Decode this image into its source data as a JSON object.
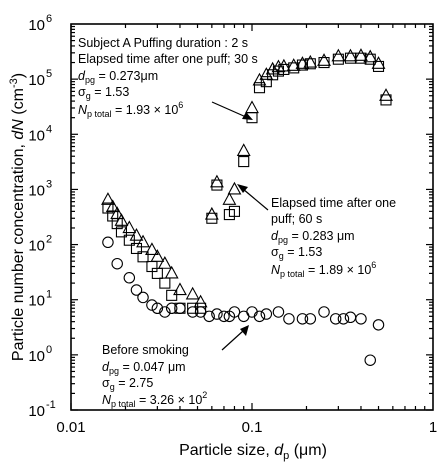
{
  "chart_data": {
    "type": "scatter",
    "xscale": "log",
    "yscale": "log",
    "xlim": [
      0.01,
      1
    ],
    "ylim": [
      0.1,
      1000000
    ],
    "x_ticks": [
      {
        "value": 0.01,
        "label": "0.01"
      },
      {
        "value": 0.1,
        "label": "0.1"
      },
      {
        "value": 1,
        "label": "1"
      }
    ],
    "y_ticks": [
      {
        "value": 0.1,
        "base": "10",
        "exp": "-1"
      },
      {
        "value": 1,
        "base": "10",
        "exp": "0"
      },
      {
        "value": 10,
        "base": "10",
        "exp": "1"
      },
      {
        "value": 100,
        "base": "10",
        "exp": "2"
      },
      {
        "value": 1000,
        "base": "10",
        "exp": "3"
      },
      {
        "value": 10000,
        "base": "10",
        "exp": "4"
      },
      {
        "value": 100000,
        "base": "10",
        "exp": "5"
      },
      {
        "value": 1000000,
        "base": "10",
        "exp": "6"
      }
    ],
    "xlabel": {
      "main": "Particle size, ",
      "var": "d",
      "sub": "p",
      "unit": " (μm)"
    },
    "ylabel": {
      "main": "Particle number concentration, ",
      "var": "dN",
      "unit_pre": " (cm",
      "unit_sup": "-3",
      "unit_post": ")"
    },
    "series": [
      {
        "marker": "triangle",
        "points": [
          [
            0.016,
            650
          ],
          [
            0.017,
            480
          ],
          [
            0.018,
            360
          ],
          [
            0.019,
            270
          ],
          [
            0.021,
            200
          ],
          [
            0.023,
            145
          ],
          [
            0.025,
            110
          ],
          [
            0.028,
            80
          ],
          [
            0.03,
            60
          ],
          [
            0.033,
            45
          ],
          [
            0.036,
            30
          ],
          [
            0.04,
            15
          ],
          [
            0.047,
            12.5
          ],
          [
            0.052,
            9
          ],
          [
            0.06,
            350
          ],
          [
            0.064,
            1350
          ],
          [
            0.075,
            650
          ],
          [
            0.08,
            1000
          ],
          [
            0.09,
            5000
          ],
          [
            0.1,
            30000
          ],
          [
            0.11,
            95000
          ],
          [
            0.12,
            120000
          ],
          [
            0.13,
            150000
          ],
          [
            0.14,
            165000
          ],
          [
            0.15,
            170000
          ],
          [
            0.17,
            175000
          ],
          [
            0.19,
            190000
          ],
          [
            0.21,
            200000
          ],
          [
            0.25,
            215000
          ],
          [
            0.3,
            260000
          ],
          [
            0.35,
            260000
          ],
          [
            0.4,
            265000
          ],
          [
            0.45,
            250000
          ],
          [
            0.5,
            190000
          ],
          [
            0.55,
            50000
          ]
        ]
      },
      {
        "marker": "square",
        "points": [
          [
            0.016,
            460
          ],
          [
            0.017,
            330
          ],
          [
            0.018,
            240
          ],
          [
            0.019,
            170
          ],
          [
            0.021,
            120
          ],
          [
            0.023,
            85
          ],
          [
            0.025,
            60
          ],
          [
            0.028,
            40
          ],
          [
            0.03,
            30
          ],
          [
            0.033,
            20
          ],
          [
            0.036,
            12
          ],
          [
            0.04,
            7
          ],
          [
            0.047,
            7
          ],
          [
            0.052,
            7
          ],
          [
            0.06,
            300
          ],
          [
            0.064,
            1200
          ],
          [
            0.075,
            350
          ],
          [
            0.08,
            400
          ],
          [
            0.09,
            3200
          ],
          [
            0.1,
            20000
          ],
          [
            0.11,
            70000
          ],
          [
            0.12,
            90000
          ],
          [
            0.13,
            120000
          ],
          [
            0.14,
            140000
          ],
          [
            0.15,
            150000
          ],
          [
            0.17,
            160000
          ],
          [
            0.19,
            180000
          ],
          [
            0.21,
            190000
          ],
          [
            0.25,
            200000
          ],
          [
            0.3,
            230000
          ],
          [
            0.35,
            240000
          ],
          [
            0.4,
            240000
          ],
          [
            0.45,
            230000
          ],
          [
            0.5,
            170000
          ],
          [
            0.55,
            42000
          ]
        ]
      },
      {
        "marker": "circle",
        "points": [
          [
            0.016,
            110
          ],
          [
            0.018,
            45
          ],
          [
            0.021,
            25
          ],
          [
            0.023,
            15
          ],
          [
            0.025,
            11
          ],
          [
            0.028,
            8
          ],
          [
            0.03,
            7
          ],
          [
            0.033,
            6
          ],
          [
            0.036,
            7
          ],
          [
            0.04,
            7
          ],
          [
            0.047,
            6
          ],
          [
            0.052,
            6
          ],
          [
            0.058,
            5
          ],
          [
            0.064,
            5.5
          ],
          [
            0.07,
            5
          ],
          [
            0.075,
            5
          ],
          [
            0.08,
            6
          ],
          [
            0.09,
            5
          ],
          [
            0.1,
            6
          ],
          [
            0.11,
            5
          ],
          [
            0.12,
            5.5
          ],
          [
            0.14,
            6
          ],
          [
            0.16,
            4.5
          ],
          [
            0.19,
            4.5
          ],
          [
            0.21,
            4.5
          ],
          [
            0.25,
            6
          ],
          [
            0.29,
            4.5
          ],
          [
            0.32,
            4.5
          ],
          [
            0.35,
            4.8
          ],
          [
            0.4,
            4.5
          ],
          [
            0.45,
            0.8
          ],
          [
            0.5,
            3.5
          ]
        ]
      }
    ],
    "annotations": {
      "header": "Subject A  Puffing duration : 2 s",
      "puff30": {
        "l1": "Elapsed time after one puff; 30 s",
        "dpg_var": "d",
        "dpg_sub": "pg",
        "dpg_val": " = 0.273μm",
        "sg_var": "σ",
        "sg_sub": "g",
        "sg_val": " = 1.53",
        "np_var": "N",
        "np_sub": "p total",
        "np_val": " = 1.93 × 10",
        "np_sup": "6"
      },
      "puff60": {
        "l1": "Elapsed time after one",
        "l2": "puff; 60 s",
        "dpg_var": "d",
        "dpg_sub": "pg",
        "dpg_val": " = 0.283 μm",
        "sg_var": "σ",
        "sg_sub": "g",
        "sg_val": " = 1.53",
        "np_var": "N",
        "np_sub": "p total",
        "np_val": " = 1.89 × 10",
        "np_sup": "6"
      },
      "before": {
        "l1": "Before smoking",
        "dpg_var": "d",
        "dpg_sub": "pg",
        "dpg_val": " = 0.047 μm",
        "sg_var": "σ",
        "sg_sub": "g",
        "sg_val": " = 2.75",
        "np_var": "N",
        "np_sub": "p total",
        "np_val": " = 3.26 × 10",
        "np_sup": "2"
      }
    }
  }
}
